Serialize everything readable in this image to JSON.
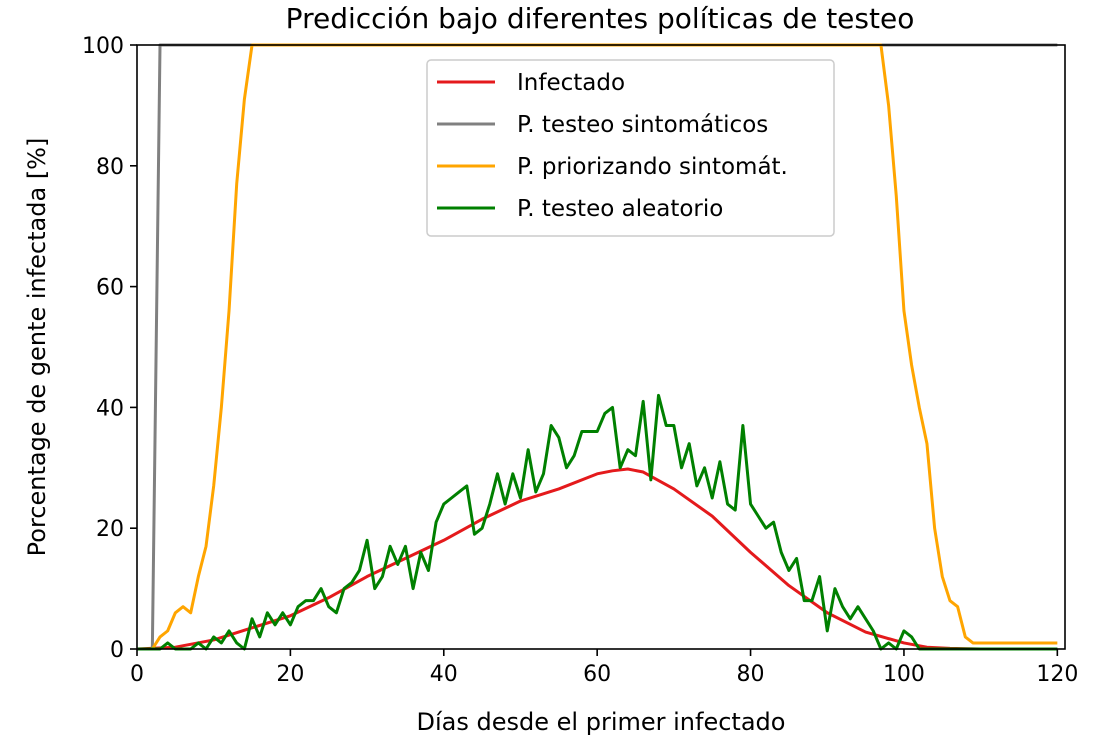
{
  "chart_data": {
    "type": "line",
    "title": "Predicción bajo diferentes políticas de testeo",
    "xlabel": "Días desde el primer infectado",
    "ylabel": "Porcentage de gente infectada [%]",
    "xlim": [
      0,
      121
    ],
    "ylim": [
      0,
      100
    ],
    "xticks": [
      0,
      20,
      40,
      60,
      80,
      100,
      120
    ],
    "yticks": [
      0,
      20,
      40,
      60,
      80,
      100
    ],
    "grid": false,
    "legend_position": "top-center",
    "series": [
      {
        "name": "Infectado",
        "color": "#e41a1c",
        "points": [
          [
            0,
            0
          ],
          [
            5,
            0.3
          ],
          [
            10,
            1.5
          ],
          [
            15,
            3.5
          ],
          [
            20,
            5.5
          ],
          [
            25,
            8.5
          ],
          [
            30,
            12
          ],
          [
            35,
            15
          ],
          [
            40,
            18
          ],
          [
            45,
            21.5
          ],
          [
            50,
            24.5
          ],
          [
            55,
            26.5
          ],
          [
            60,
            29
          ],
          [
            62,
            29.5
          ],
          [
            64,
            29.8
          ],
          [
            66,
            29.3
          ],
          [
            70,
            26.5
          ],
          [
            75,
            22
          ],
          [
            80,
            16
          ],
          [
            85,
            10.5
          ],
          [
            90,
            6
          ],
          [
            95,
            2.8
          ],
          [
            100,
            1
          ],
          [
            103,
            0.3
          ],
          [
            106,
            0.1
          ],
          [
            110,
            0
          ],
          [
            120,
            0
          ]
        ]
      },
      {
        "name": "P. testeo sintomáticos",
        "color": "#808080",
        "points": [
          [
            0,
            0
          ],
          [
            2,
            0
          ],
          [
            3,
            100
          ],
          [
            120,
            100
          ]
        ]
      },
      {
        "name": "P. priorizando sintomát.",
        "color": "#ffa500",
        "points": [
          [
            0,
            0
          ],
          [
            2,
            0
          ],
          [
            3,
            2
          ],
          [
            4,
            3
          ],
          [
            5,
            6
          ],
          [
            6,
            7
          ],
          [
            7,
            6
          ],
          [
            8,
            12
          ],
          [
            9,
            17
          ],
          [
            10,
            27
          ],
          [
            11,
            40
          ],
          [
            12,
            56
          ],
          [
            13,
            77
          ],
          [
            14,
            91
          ],
          [
            15,
            100
          ],
          [
            96,
            100
          ],
          [
            97,
            100
          ],
          [
            98,
            90
          ],
          [
            99,
            75
          ],
          [
            100,
            56
          ],
          [
            101,
            47
          ],
          [
            102,
            40
          ],
          [
            103,
            34
          ],
          [
            104,
            20
          ],
          [
            105,
            12
          ],
          [
            106,
            8
          ],
          [
            107,
            7
          ],
          [
            108,
            2
          ],
          [
            109,
            1
          ],
          [
            110,
            1
          ],
          [
            120,
            1
          ]
        ]
      },
      {
        "name": "P. testeo aleatorio",
        "color": "#008000",
        "points": [
          [
            0,
            0
          ],
          [
            3,
            0
          ],
          [
            4,
            1
          ],
          [
            5,
            0
          ],
          [
            7,
            0
          ],
          [
            8,
            1
          ],
          [
            9,
            0
          ],
          [
            10,
            2
          ],
          [
            11,
            1
          ],
          [
            12,
            3
          ],
          [
            13,
            1
          ],
          [
            14,
            0
          ],
          [
            15,
            5
          ],
          [
            16,
            2
          ],
          [
            17,
            6
          ],
          [
            18,
            4
          ],
          [
            19,
            6
          ],
          [
            20,
            4
          ],
          [
            21,
            7
          ],
          [
            22,
            8
          ],
          [
            23,
            8
          ],
          [
            24,
            10
          ],
          [
            25,
            7
          ],
          [
            26,
            6
          ],
          [
            27,
            10
          ],
          [
            28,
            11
          ],
          [
            29,
            13
          ],
          [
            30,
            18
          ],
          [
            31,
            10
          ],
          [
            32,
            12
          ],
          [
            33,
            17
          ],
          [
            34,
            14
          ],
          [
            35,
            17
          ],
          [
            36,
            10
          ],
          [
            37,
            16
          ],
          [
            38,
            13
          ],
          [
            39,
            21
          ],
          [
            40,
            24
          ],
          [
            41,
            25
          ],
          [
            42,
            26
          ],
          [
            43,
            27
          ],
          [
            44,
            19
          ],
          [
            45,
            20
          ],
          [
            46,
            24
          ],
          [
            47,
            29
          ],
          [
            48,
            24
          ],
          [
            49,
            29
          ],
          [
            50,
            25
          ],
          [
            51,
            33
          ],
          [
            52,
            26
          ],
          [
            53,
            29
          ],
          [
            54,
            37
          ],
          [
            55,
            35
          ],
          [
            56,
            30
          ],
          [
            57,
            32
          ],
          [
            58,
            36
          ],
          [
            59,
            36
          ],
          [
            60,
            36
          ],
          [
            61,
            39
          ],
          [
            62,
            40
          ],
          [
            63,
            30
          ],
          [
            64,
            33
          ],
          [
            65,
            32
          ],
          [
            66,
            41
          ],
          [
            67,
            28
          ],
          [
            68,
            42
          ],
          [
            69,
            37
          ],
          [
            70,
            37
          ],
          [
            71,
            30
          ],
          [
            72,
            34
          ],
          [
            73,
            27
          ],
          [
            74,
            30
          ],
          [
            75,
            25
          ],
          [
            76,
            31
          ],
          [
            77,
            24
          ],
          [
            78,
            23
          ],
          [
            79,
            37
          ],
          [
            80,
            24
          ],
          [
            81,
            22
          ],
          [
            82,
            20
          ],
          [
            83,
            21
          ],
          [
            84,
            16
          ],
          [
            85,
            13
          ],
          [
            86,
            15
          ],
          [
            87,
            8
          ],
          [
            88,
            8
          ],
          [
            89,
            12
          ],
          [
            90,
            3
          ],
          [
            91,
            10
          ],
          [
            92,
            7
          ],
          [
            93,
            5
          ],
          [
            94,
            7
          ],
          [
            95,
            5
          ],
          [
            96,
            3
          ],
          [
            97,
            0
          ],
          [
            98,
            1
          ],
          [
            99,
            0
          ],
          [
            100,
            3
          ],
          [
            101,
            2
          ],
          [
            102,
            0
          ],
          [
            105,
            0
          ],
          [
            110,
            0
          ],
          [
            120,
            0
          ]
        ]
      }
    ]
  }
}
